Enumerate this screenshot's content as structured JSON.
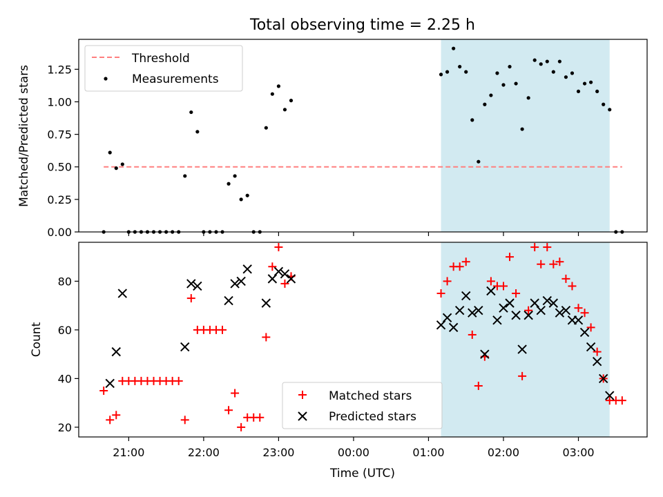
{
  "chart_data": [
    {
      "type": "scatter",
      "title": "Total observing time = 2.25 h",
      "ylabel": "Matched/Predicted stars",
      "xlabel": "",
      "xlim": [
        "20:20",
        "03:55"
      ],
      "ylim": [
        0,
        1.48
      ],
      "yticks": [
        "0.00",
        "0.25",
        "0.50",
        "0.75",
        "1.00",
        "1.25"
      ],
      "legend_position": "upper-left",
      "shaded_interval": {
        "start": "01:10",
        "end": "03:25",
        "color": "#add8e6"
      },
      "series": [
        {
          "name": "Threshold",
          "style": "dashed-line",
          "color": "#ff7f7f",
          "x": [
            "20:40",
            "03:35"
          ],
          "y": [
            0.5,
            0.5
          ]
        },
        {
          "name": "Measurements",
          "style": "dot",
          "color": "#000000",
          "x": [
            "20:40",
            "20:45",
            "20:50",
            "20:55",
            "21:00",
            "21:05",
            "21:10",
            "21:15",
            "21:20",
            "21:25",
            "21:30",
            "21:35",
            "21:40",
            "21:45",
            "21:50",
            "21:55",
            "22:00",
            "22:05",
            "22:10",
            "22:15",
            "22:20",
            "22:25",
            "22:30",
            "22:35",
            "22:40",
            "22:45",
            "22:50",
            "22:55",
            "23:00",
            "23:05",
            "23:10",
            "01:10",
            "01:15",
            "01:20",
            "01:25",
            "01:30",
            "01:35",
            "01:40",
            "01:45",
            "01:50",
            "01:55",
            "02:00",
            "02:05",
            "02:10",
            "02:15",
            "02:20",
            "02:25",
            "02:30",
            "02:35",
            "02:40",
            "02:45",
            "02:50",
            "02:55",
            "03:00",
            "03:05",
            "03:10",
            "03:15",
            "03:20",
            "03:25",
            "03:30",
            "03:35"
          ],
          "y": [
            0.0,
            0.61,
            0.49,
            0.52,
            0.0,
            0.0,
            0.0,
            0.0,
            0.0,
            0.0,
            0.0,
            0.0,
            0.0,
            0.43,
            0.92,
            0.77,
            0.0,
            0.0,
            0.0,
            0.0,
            0.37,
            0.43,
            0.25,
            0.28,
            0.0,
            0.0,
            0.8,
            1.06,
            1.12,
            0.94,
            1.01,
            1.21,
            1.23,
            1.41,
            1.27,
            1.23,
            0.86,
            0.54,
            0.98,
            1.05,
            1.22,
            1.13,
            1.27,
            1.14,
            0.79,
            1.03,
            1.32,
            1.29,
            1.31,
            1.23,
            1.31,
            1.19,
            1.22,
            1.08,
            1.14,
            1.15,
            1.08,
            0.98,
            0.94,
            0.0,
            0.0
          ]
        }
      ]
    },
    {
      "type": "scatter",
      "title": "",
      "ylabel": "Count",
      "xlabel": "Time (UTC)",
      "xlim": [
        "20:20",
        "03:55"
      ],
      "ylim": [
        16,
        96
      ],
      "yticks": [
        "20",
        "40",
        "60",
        "80"
      ],
      "xticks": [
        "21:00",
        "22:00",
        "23:00",
        "00:00",
        "01:00",
        "02:00",
        "03:00"
      ],
      "legend_position": "lower-center",
      "shaded_interval": {
        "start": "01:10",
        "end": "03:25",
        "color": "#add8e6"
      },
      "series": [
        {
          "name": "Matched stars",
          "style": "plus",
          "color": "#ff0000",
          "x": [
            "20:40",
            "20:45",
            "20:50",
            "20:55",
            "21:00",
            "21:05",
            "21:10",
            "21:15",
            "21:20",
            "21:25",
            "21:30",
            "21:35",
            "21:40",
            "21:45",
            "21:50",
            "21:55",
            "22:00",
            "22:05",
            "22:10",
            "22:15",
            "22:20",
            "22:25",
            "22:30",
            "22:35",
            "22:40",
            "22:45",
            "22:50",
            "22:55",
            "23:00",
            "23:05",
            "23:10",
            "01:10",
            "01:15",
            "01:20",
            "01:25",
            "01:30",
            "01:35",
            "01:40",
            "01:45",
            "01:50",
            "01:55",
            "02:00",
            "02:05",
            "02:10",
            "02:15",
            "02:20",
            "02:25",
            "02:30",
            "02:35",
            "02:40",
            "02:45",
            "02:50",
            "02:55",
            "03:00",
            "03:05",
            "03:10",
            "03:15",
            "03:20",
            "03:25",
            "03:30",
            "03:35"
          ],
          "y": [
            35,
            23,
            25,
            39,
            39,
            39,
            39,
            39,
            39,
            39,
            39,
            39,
            39,
            23,
            73,
            60,
            60,
            60,
            60,
            60,
            27,
            34,
            20,
            24,
            24,
            24,
            57,
            86,
            94,
            79,
            82,
            75,
            80,
            86,
            86,
            88,
            58,
            37,
            49,
            80,
            78,
            78,
            90,
            75,
            41,
            68,
            94,
            87,
            94,
            87,
            88,
            81,
            78,
            69,
            67,
            61,
            51,
            40,
            31,
            31,
            31
          ]
        },
        {
          "name": "Predicted stars",
          "style": "x",
          "color": "#000000",
          "x": [
            "20:45",
            "20:50",
            "20:55",
            "21:45",
            "21:50",
            "21:55",
            "22:20",
            "22:25",
            "22:30",
            "22:35",
            "22:50",
            "22:55",
            "23:00",
            "23:05",
            "23:10",
            "01:10",
            "01:15",
            "01:20",
            "01:25",
            "01:30",
            "01:35",
            "01:40",
            "01:45",
            "01:50",
            "01:55",
            "02:00",
            "02:05",
            "02:10",
            "02:15",
            "02:20",
            "02:25",
            "02:30",
            "02:35",
            "02:40",
            "02:45",
            "02:50",
            "02:55",
            "03:00",
            "03:05",
            "03:10",
            "03:15",
            "03:20",
            "03:25"
          ],
          "y": [
            38,
            51,
            75,
            53,
            79,
            78,
            72,
            79,
            80,
            85,
            71,
            81,
            84,
            83,
            81,
            62,
            65,
            61,
            68,
            74,
            67,
            68,
            50,
            76,
            64,
            69,
            71,
            66,
            52,
            66,
            71,
            68,
            72,
            71,
            67,
            68,
            64,
            64,
            59,
            53,
            47,
            40,
            33
          ]
        }
      ]
    }
  ]
}
